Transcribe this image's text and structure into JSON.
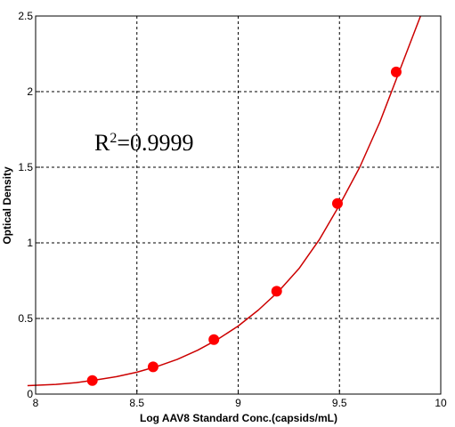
{
  "chart_data": {
    "type": "scatter",
    "title": "",
    "xlabel": "Log AAV8 Standard Conc.(capsids/mL)",
    "ylabel": "Optical Density",
    "xlim": [
      8,
      10
    ],
    "ylim": [
      0,
      2.5
    ],
    "x_ticks": [
      8,
      8.5,
      9,
      9.5,
      10
    ],
    "x_tick_labels": [
      "8",
      "8.5",
      "9",
      "9.5",
      "10"
    ],
    "y_ticks": [
      0,
      0.5,
      1,
      1.5,
      2,
      2.5
    ],
    "y_tick_labels": [
      "0",
      "0.5",
      "1",
      "1.5",
      "2",
      "2.5"
    ],
    "grid": "dashed",
    "annotation": {
      "base": "R",
      "sup": "2",
      "rest": "=0.9999"
    },
    "series": [
      {
        "type": "scatter",
        "color": "#ff0000",
        "x": [
          8.28,
          8.58,
          8.88,
          9.19,
          9.49,
          9.78
        ],
        "y": [
          0.09,
          0.18,
          0.36,
          0.68,
          1.26,
          2.13
        ]
      },
      {
        "type": "line",
        "color": "#cc0000",
        "x": [
          7.96,
          8.1,
          8.2,
          8.3,
          8.4,
          8.5,
          8.6,
          8.7,
          8.8,
          8.9,
          9.0,
          9.1,
          9.2,
          9.3,
          9.4,
          9.5,
          9.6,
          9.7,
          9.8,
          9.9
        ],
        "y": [
          0.056,
          0.064,
          0.076,
          0.094,
          0.115,
          0.145,
          0.183,
          0.23,
          0.29,
          0.363,
          0.45,
          0.556,
          0.68,
          0.83,
          1.02,
          1.25,
          1.5,
          1.8,
          2.15,
          2.5
        ]
      }
    ]
  }
}
